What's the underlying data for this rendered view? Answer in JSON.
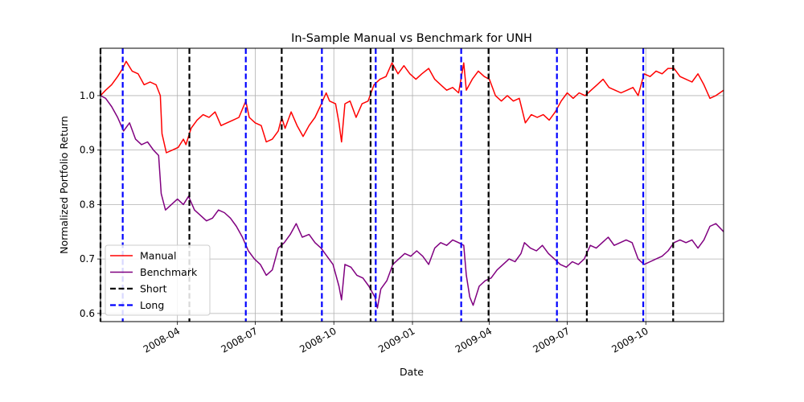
{
  "chart_data": {
    "type": "line",
    "title": "In-Sample Manual vs Benchmark for UNH",
    "xlabel": "Date",
    "ylabel": "Normalized Portfolio Return",
    "x_range": [
      "2008-01-02",
      "2009-12-31"
    ],
    "ylim": [
      0.585,
      1.087
    ],
    "grid": true,
    "legend_position": "lower-left",
    "x_ticks": [
      {
        "date": "2008-04-01",
        "label": "2008-04"
      },
      {
        "date": "2008-07-01",
        "label": "2008-07"
      },
      {
        "date": "2008-10-01",
        "label": "2008-10"
      },
      {
        "date": "2009-01-01",
        "label": "2009-01"
      },
      {
        "date": "2009-04-01",
        "label": "2009-04"
      },
      {
        "date": "2009-07-01",
        "label": "2009-07"
      },
      {
        "date": "2009-10-01",
        "label": "2009-10"
      }
    ],
    "y_ticks": [
      0.6,
      0.7,
      0.8,
      0.9,
      1.0
    ],
    "y_tick_labels": [
      "0.6",
      "0.7",
      "0.8",
      "0.9",
      "1.0"
    ],
    "series": [
      {
        "name": "Manual",
        "color": "#ff0000",
        "points": [
          [
            "2008-01-02",
            1.0
          ],
          [
            "2008-01-08",
            1.01
          ],
          [
            "2008-01-15",
            1.02
          ],
          [
            "2008-01-22",
            1.035
          ],
          [
            "2008-01-28",
            1.05
          ],
          [
            "2008-02-01",
            1.063
          ],
          [
            "2008-02-08",
            1.045
          ],
          [
            "2008-02-15",
            1.04
          ],
          [
            "2008-02-22",
            1.02
          ],
          [
            "2008-02-29",
            1.025
          ],
          [
            "2008-03-07",
            1.02
          ],
          [
            "2008-03-12",
            1.0
          ],
          [
            "2008-03-14",
            0.93
          ],
          [
            "2008-03-19",
            0.895
          ],
          [
            "2008-03-26",
            0.9
          ],
          [
            "2008-04-02",
            0.905
          ],
          [
            "2008-04-08",
            0.92
          ],
          [
            "2008-04-11",
            0.91
          ],
          [
            "2008-04-17",
            0.94
          ],
          [
            "2008-04-24",
            0.955
          ],
          [
            "2008-05-01",
            0.965
          ],
          [
            "2008-05-08",
            0.96
          ],
          [
            "2008-05-15",
            0.97
          ],
          [
            "2008-05-22",
            0.945
          ],
          [
            "2008-05-29",
            0.95
          ],
          [
            "2008-06-05",
            0.955
          ],
          [
            "2008-06-12",
            0.96
          ],
          [
            "2008-06-20",
            0.99
          ],
          [
            "2008-06-24",
            0.96
          ],
          [
            "2008-07-01",
            0.95
          ],
          [
            "2008-07-08",
            0.945
          ],
          [
            "2008-07-14",
            0.915
          ],
          [
            "2008-07-21",
            0.92
          ],
          [
            "2008-07-28",
            0.935
          ],
          [
            "2008-08-01",
            0.96
          ],
          [
            "2008-08-05",
            0.94
          ],
          [
            "2008-08-12",
            0.97
          ],
          [
            "2008-08-19",
            0.945
          ],
          [
            "2008-08-26",
            0.925
          ],
          [
            "2008-09-02",
            0.945
          ],
          [
            "2008-09-09",
            0.96
          ],
          [
            "2008-09-15",
            0.98
          ],
          [
            "2008-09-22",
            1.005
          ],
          [
            "2008-09-26",
            0.99
          ],
          [
            "2008-10-03",
            0.985
          ],
          [
            "2008-10-07",
            0.95
          ],
          [
            "2008-10-10",
            0.915
          ],
          [
            "2008-10-14",
            0.985
          ],
          [
            "2008-10-20",
            0.99
          ],
          [
            "2008-10-27",
            0.96
          ],
          [
            "2008-11-03",
            0.985
          ],
          [
            "2008-11-10",
            0.99
          ],
          [
            "2008-11-17",
            1.02
          ],
          [
            "2008-11-24",
            1.03
          ],
          [
            "2008-12-01",
            1.035
          ],
          [
            "2008-12-08",
            1.06
          ],
          [
            "2008-12-15",
            1.04
          ],
          [
            "2008-12-22",
            1.055
          ],
          [
            "2008-12-29",
            1.04
          ],
          [
            "2009-01-05",
            1.03
          ],
          [
            "2009-01-12",
            1.04
          ],
          [
            "2009-01-20",
            1.05
          ],
          [
            "2009-01-27",
            1.03
          ],
          [
            "2009-02-03",
            1.02
          ],
          [
            "2009-02-10",
            1.01
          ],
          [
            "2009-02-17",
            1.015
          ],
          [
            "2009-02-24",
            1.005
          ],
          [
            "2009-03-02",
            1.06
          ],
          [
            "2009-03-05",
            1.01
          ],
          [
            "2009-03-12",
            1.03
          ],
          [
            "2009-03-19",
            1.045
          ],
          [
            "2009-03-26",
            1.035
          ],
          [
            "2009-04-01",
            1.03
          ],
          [
            "2009-04-08",
            1.0
          ],
          [
            "2009-04-15",
            0.99
          ],
          [
            "2009-04-22",
            1.0
          ],
          [
            "2009-04-29",
            0.99
          ],
          [
            "2009-05-06",
            0.995
          ],
          [
            "2009-05-13",
            0.95
          ],
          [
            "2009-05-20",
            0.965
          ],
          [
            "2009-05-27",
            0.96
          ],
          [
            "2009-06-03",
            0.965
          ],
          [
            "2009-06-10",
            0.955
          ],
          [
            "2009-06-17",
            0.97
          ],
          [
            "2009-06-24",
            0.99
          ],
          [
            "2009-07-01",
            1.005
          ],
          [
            "2009-07-08",
            0.995
          ],
          [
            "2009-07-15",
            1.005
          ],
          [
            "2009-07-22",
            1.0
          ],
          [
            "2009-07-29",
            1.01
          ],
          [
            "2009-08-05",
            1.02
          ],
          [
            "2009-08-12",
            1.03
          ],
          [
            "2009-08-19",
            1.015
          ],
          [
            "2009-08-26",
            1.01
          ],
          [
            "2009-09-02",
            1.005
          ],
          [
            "2009-09-09",
            1.01
          ],
          [
            "2009-09-16",
            1.015
          ],
          [
            "2009-09-22",
            1.0
          ],
          [
            "2009-09-29",
            1.04
          ],
          [
            "2009-10-06",
            1.035
          ],
          [
            "2009-10-13",
            1.045
          ],
          [
            "2009-10-20",
            1.04
          ],
          [
            "2009-10-27",
            1.05
          ],
          [
            "2009-11-03",
            1.05
          ],
          [
            "2009-11-10",
            1.035
          ],
          [
            "2009-11-17",
            1.03
          ],
          [
            "2009-11-24",
            1.025
          ],
          [
            "2009-12-01",
            1.04
          ],
          [
            "2009-12-08",
            1.02
          ],
          [
            "2009-12-15",
            0.995
          ],
          [
            "2009-12-22",
            1.0
          ],
          [
            "2009-12-31",
            1.01
          ]
        ]
      },
      {
        "name": "Benchmark",
        "color": "#800080",
        "points": [
          [
            "2008-01-02",
            1.0
          ],
          [
            "2008-01-08",
            0.995
          ],
          [
            "2008-01-15",
            0.98
          ],
          [
            "2008-01-22",
            0.96
          ],
          [
            "2008-01-29",
            0.935
          ],
          [
            "2008-02-05",
            0.95
          ],
          [
            "2008-02-12",
            0.92
          ],
          [
            "2008-02-19",
            0.91
          ],
          [
            "2008-02-26",
            0.915
          ],
          [
            "2008-03-04",
            0.9
          ],
          [
            "2008-03-10",
            0.89
          ],
          [
            "2008-03-13",
            0.82
          ],
          [
            "2008-03-18",
            0.79
          ],
          [
            "2008-03-25",
            0.8
          ],
          [
            "2008-04-01",
            0.81
          ],
          [
            "2008-04-08",
            0.8
          ],
          [
            "2008-04-14",
            0.815
          ],
          [
            "2008-04-21",
            0.79
          ],
          [
            "2008-04-28",
            0.78
          ],
          [
            "2008-05-05",
            0.77
          ],
          [
            "2008-05-12",
            0.775
          ],
          [
            "2008-05-19",
            0.79
          ],
          [
            "2008-05-26",
            0.785
          ],
          [
            "2008-06-02",
            0.775
          ],
          [
            "2008-06-09",
            0.76
          ],
          [
            "2008-06-16",
            0.74
          ],
          [
            "2008-06-23",
            0.715
          ],
          [
            "2008-06-30",
            0.7
          ],
          [
            "2008-07-07",
            0.69
          ],
          [
            "2008-07-14",
            0.67
          ],
          [
            "2008-07-21",
            0.68
          ],
          [
            "2008-07-28",
            0.72
          ],
          [
            "2008-08-04",
            0.73
          ],
          [
            "2008-08-11",
            0.745
          ],
          [
            "2008-08-18",
            0.765
          ],
          [
            "2008-08-25",
            0.74
          ],
          [
            "2008-09-02",
            0.745
          ],
          [
            "2008-09-09",
            0.73
          ],
          [
            "2008-09-16",
            0.72
          ],
          [
            "2008-09-23",
            0.705
          ],
          [
            "2008-09-30",
            0.69
          ],
          [
            "2008-10-07",
            0.65
          ],
          [
            "2008-10-10",
            0.625
          ],
          [
            "2008-10-14",
            0.69
          ],
          [
            "2008-10-21",
            0.685
          ],
          [
            "2008-10-28",
            0.67
          ],
          [
            "2008-11-04",
            0.665
          ],
          [
            "2008-11-11",
            0.65
          ],
          [
            "2008-11-18",
            0.63
          ],
          [
            "2008-11-21",
            0.61
          ],
          [
            "2008-11-25",
            0.645
          ],
          [
            "2008-12-02",
            0.66
          ],
          [
            "2008-12-09",
            0.69
          ],
          [
            "2008-12-16",
            0.7
          ],
          [
            "2008-12-23",
            0.71
          ],
          [
            "2008-12-30",
            0.705
          ],
          [
            "2009-01-06",
            0.715
          ],
          [
            "2009-01-13",
            0.705
          ],
          [
            "2009-01-20",
            0.69
          ],
          [
            "2009-01-27",
            0.72
          ],
          [
            "2009-02-03",
            0.73
          ],
          [
            "2009-02-10",
            0.725
          ],
          [
            "2009-02-17",
            0.735
          ],
          [
            "2009-02-24",
            0.73
          ],
          [
            "2009-03-02",
            0.725
          ],
          [
            "2009-03-05",
            0.67
          ],
          [
            "2009-03-09",
            0.63
          ],
          [
            "2009-03-13",
            0.615
          ],
          [
            "2009-03-20",
            0.65
          ],
          [
            "2009-03-27",
            0.66
          ],
          [
            "2009-04-03",
            0.665
          ],
          [
            "2009-04-10",
            0.68
          ],
          [
            "2009-04-17",
            0.69
          ],
          [
            "2009-04-24",
            0.7
          ],
          [
            "2009-05-01",
            0.695
          ],
          [
            "2009-05-08",
            0.71
          ],
          [
            "2009-05-12",
            0.73
          ],
          [
            "2009-05-19",
            0.72
          ],
          [
            "2009-05-26",
            0.715
          ],
          [
            "2009-06-02",
            0.725
          ],
          [
            "2009-06-09",
            0.71
          ],
          [
            "2009-06-16",
            0.7
          ],
          [
            "2009-06-23",
            0.69
          ],
          [
            "2009-06-30",
            0.685
          ],
          [
            "2009-07-07",
            0.695
          ],
          [
            "2009-07-14",
            0.69
          ],
          [
            "2009-07-21",
            0.7
          ],
          [
            "2009-07-28",
            0.725
          ],
          [
            "2009-08-04",
            0.72
          ],
          [
            "2009-08-11",
            0.73
          ],
          [
            "2009-08-18",
            0.74
          ],
          [
            "2009-08-25",
            0.725
          ],
          [
            "2009-09-01",
            0.73
          ],
          [
            "2009-09-08",
            0.735
          ],
          [
            "2009-09-15",
            0.73
          ],
          [
            "2009-09-22",
            0.7
          ],
          [
            "2009-09-29",
            0.69
          ],
          [
            "2009-10-06",
            0.695
          ],
          [
            "2009-10-13",
            0.7
          ],
          [
            "2009-10-20",
            0.705
          ],
          [
            "2009-10-27",
            0.715
          ],
          [
            "2009-11-03",
            0.73
          ],
          [
            "2009-11-10",
            0.735
          ],
          [
            "2009-11-17",
            0.73
          ],
          [
            "2009-11-24",
            0.735
          ],
          [
            "2009-12-01",
            0.72
          ],
          [
            "2009-12-08",
            0.735
          ],
          [
            "2009-12-15",
            0.76
          ],
          [
            "2009-12-22",
            0.765
          ],
          [
            "2009-12-31",
            0.75
          ]
        ]
      }
    ],
    "vlines": [
      {
        "name": "Short",
        "color": "#000000",
        "dates": [
          "2008-01-02",
          "2008-04-15",
          "2008-08-01",
          "2008-11-13",
          "2008-12-09",
          "2009-03-31",
          "2009-07-24",
          "2009-11-02"
        ]
      },
      {
        "name": "Long",
        "color": "#0000ff",
        "dates": [
          "2008-01-28",
          "2008-06-20",
          "2008-09-17",
          "2008-11-19",
          "2009-02-27",
          "2009-06-19",
          "2009-09-28"
        ]
      }
    ],
    "legend": [
      {
        "label": "Manual",
        "color": "#ff0000",
        "style": "solid"
      },
      {
        "label": "Benchmark",
        "color": "#800080",
        "style": "solid"
      },
      {
        "label": "Short",
        "color": "#000000",
        "style": "dashed"
      },
      {
        "label": "Long",
        "color": "#0000ff",
        "style": "dashed"
      }
    ]
  }
}
